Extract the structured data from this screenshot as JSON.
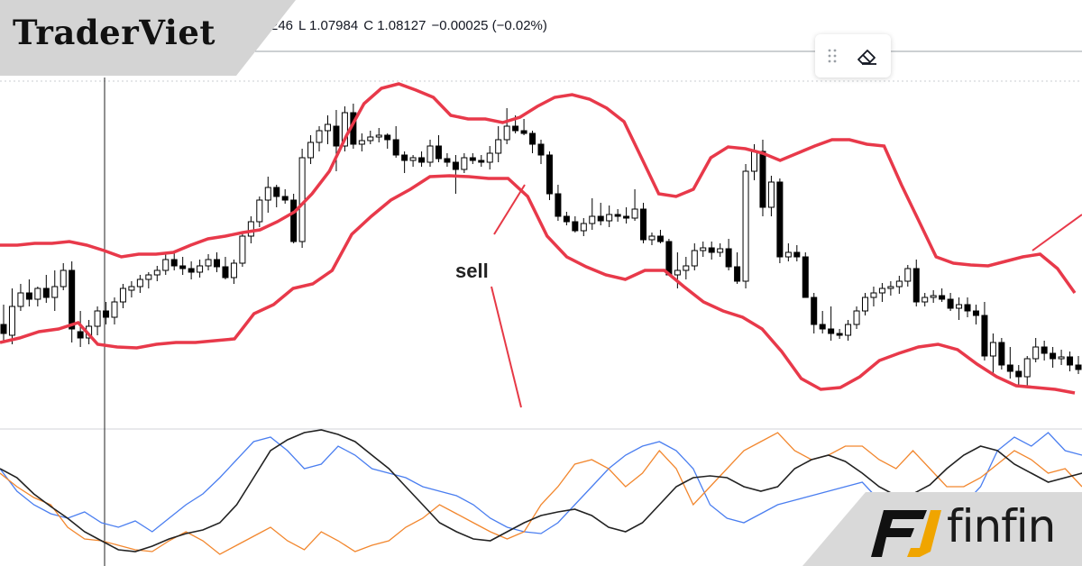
{
  "header": {
    "ohlc": [
      {
        "key": "h",
        "text": "246"
      },
      {
        "key": "l",
        "text": "L 1.07984"
      },
      {
        "key": "c",
        "text": "C 1.08127"
      },
      {
        "key": "chg",
        "text": "−0.00025 (−0.02%)"
      }
    ]
  },
  "branding": {
    "left_logo": "TraderViet",
    "right_logo": "finfin"
  },
  "annotation": {
    "label": "sell",
    "color": "#e63946"
  },
  "colors": {
    "bollinger": "#e8394a",
    "candle": "#000000",
    "osc_black": "#222222",
    "osc_blue": "#4a7ef0",
    "osc_orange": "#f2872e",
    "separator": "#d0d3d9"
  },
  "icons": [
    "drag-handle-icon",
    "eraser-icon",
    "finfin-logo-icon"
  ],
  "chart_data": [
    {
      "type": "candlestick",
      "indicator": "bollinger_bands",
      "candles": [
        [
          360,
          338,
          380,
          370
        ],
        [
          372,
          320,
          382,
          340
        ],
        [
          340,
          315,
          345,
          325
        ],
        [
          325,
          310,
          340,
          332
        ],
        [
          332,
          318,
          340,
          320
        ],
        [
          320,
          305,
          336,
          330
        ],
        [
          330,
          300,
          345,
          318
        ],
        [
          318,
          292,
          322,
          300
        ],
        [
          300,
          290,
          380,
          365
        ],
        [
          368,
          345,
          385,
          375
        ],
        [
          375,
          355,
          382,
          362
        ],
        [
          362,
          340,
          372,
          345
        ],
        [
          345,
          335,
          360,
          352
        ],
        [
          352,
          330,
          360,
          335
        ],
        [
          335,
          315,
          342,
          320
        ],
        [
          322,
          312,
          330,
          318
        ],
        [
          318,
          305,
          325,
          310
        ],
        [
          310,
          302,
          320,
          305
        ],
        [
          305,
          295,
          312,
          300
        ],
        [
          300,
          282,
          305,
          288
        ],
        [
          288,
          278,
          300,
          295
        ],
        [
          295,
          285,
          305,
          298
        ],
        [
          298,
          290,
          310,
          302
        ],
        [
          302,
          288,
          308,
          295
        ],
        [
          295,
          282,
          300,
          288
        ],
        [
          288,
          280,
          302,
          296
        ],
        [
          296,
          285,
          310,
          308
        ],
        [
          308,
          288,
          315,
          292
        ],
        [
          292,
          258,
          296,
          262
        ],
        [
          262,
          240,
          270,
          246
        ],
        [
          246,
          218,
          252,
          222
        ],
        [
          222,
          196,
          236,
          208
        ],
        [
          208,
          205,
          230,
          218
        ],
        [
          218,
          210,
          226,
          222
        ],
        [
          222,
          215,
          270,
          268
        ],
        [
          268,
          165,
          275,
          175
        ],
        [
          175,
          150,
          182,
          158
        ],
        [
          158,
          140,
          168,
          145
        ],
        [
          145,
          128,
          160,
          138
        ],
        [
          140,
          122,
          190,
          162
        ],
        [
          162,
          118,
          168,
          125
        ],
        [
          125,
          115,
          165,
          160
        ],
        [
          160,
          148,
          168,
          156
        ],
        [
          156,
          145,
          160,
          152
        ],
        [
          152,
          142,
          158,
          150
        ],
        [
          150,
          148,
          165,
          155
        ],
        [
          155,
          140,
          175,
          172
        ],
        [
          172,
          168,
          192,
          178
        ],
        [
          178,
          172,
          185,
          175
        ],
        [
          175,
          168,
          185,
          180
        ],
        [
          180,
          155,
          185,
          162
        ],
        [
          162,
          150,
          180,
          176
        ],
        [
          176,
          170,
          185,
          180
        ],
        [
          180,
          172,
          215,
          188
        ],
        [
          188,
          170,
          192,
          175
        ],
        [
          175,
          170,
          182,
          178
        ],
        [
          178,
          172,
          185,
          180
        ],
        [
          180,
          162,
          188,
          170
        ],
        [
          170,
          140,
          180,
          155
        ],
        [
          155,
          120,
          160,
          140
        ],
        [
          140,
          128,
          148,
          145
        ],
        [
          145,
          132,
          150,
          148
        ],
        [
          148,
          145,
          170,
          160
        ],
        [
          160,
          155,
          182,
          172
        ],
        [
          172,
          168,
          222,
          215
        ],
        [
          215,
          205,
          245,
          240
        ],
        [
          240,
          235,
          250,
          246
        ],
        [
          246,
          240,
          258,
          256
        ],
        [
          256,
          242,
          262,
          248
        ],
        [
          248,
          220,
          255,
          240
        ],
        [
          240,
          225,
          250,
          245
        ],
        [
          245,
          228,
          252,
          238
        ],
        [
          238,
          232,
          246,
          240
        ],
        [
          240,
          230,
          248,
          242
        ],
        [
          242,
          210,
          245,
          232
        ],
        [
          232,
          225,
          270,
          266
        ],
        [
          266,
          258,
          272,
          262
        ],
        [
          262,
          255,
          270,
          268
        ],
        [
          268,
          265,
          300,
          305
        ],
        [
          305,
          280,
          320,
          300
        ],
        [
          300,
          285,
          310,
          295
        ],
        [
          295,
          270,
          300,
          278
        ],
        [
          278,
          268,
          285,
          275
        ],
        [
          275,
          268,
          288,
          280
        ],
        [
          280,
          270,
          285,
          276
        ],
        [
          276,
          265,
          300,
          296
        ],
        [
          296,
          280,
          315,
          312
        ],
        [
          312,
          182,
          320,
          190
        ],
        [
          190,
          160,
          200,
          168
        ],
        [
          168,
          155,
          240,
          230
        ],
        [
          230,
          195,
          240,
          202
        ],
        [
          202,
          198,
          292,
          285
        ],
        [
          285,
          270,
          290,
          280
        ],
        [
          280,
          272,
          290,
          285
        ],
        [
          285,
          280,
          330,
          330
        ],
        [
          330,
          325,
          370,
          360
        ],
        [
          360,
          345,
          370,
          365
        ],
        [
          365,
          340,
          378,
          370
        ],
        [
          370,
          365,
          376,
          372
        ],
        [
          372,
          355,
          378,
          360
        ],
        [
          360,
          340,
          365,
          345
        ],
        [
          345,
          325,
          350,
          330
        ],
        [
          330,
          318,
          340,
          325
        ],
        [
          325,
          314,
          335,
          320
        ],
        [
          320,
          312,
          328,
          318
        ],
        [
          318,
          306,
          326,
          312
        ],
        [
          312,
          294,
          318,
          298
        ],
        [
          298,
          288,
          340,
          335
        ],
        [
          335,
          325,
          340,
          330
        ],
        [
          330,
          322,
          336,
          328
        ],
        [
          328,
          320,
          335,
          332
        ],
        [
          332,
          325,
          345,
          342
        ],
        [
          342,
          330,
          355,
          338
        ],
        [
          338,
          330,
          352,
          345
        ],
        [
          345,
          338,
          360,
          350
        ],
        [
          350,
          335,
          400,
          395
        ],
        [
          395,
          370,
          415,
          380
        ],
        [
          380,
          375,
          410,
          405
        ],
        [
          405,
          385,
          420,
          412
        ],
        [
          412,
          405,
          428,
          418
        ],
        [
          418,
          395,
          430,
          398
        ],
        [
          398,
          375,
          402,
          385
        ],
        [
          385,
          378,
          400,
          392
        ],
        [
          392,
          385,
          408,
          398
        ],
        [
          398,
          388,
          405,
          396
        ],
        [
          396,
          390,
          412,
          405
        ],
        [
          405,
          395,
          415,
          410
        ]
      ],
      "upper_band": [
        272,
        272,
        270,
        270,
        268,
        272,
        278,
        285,
        282,
        282,
        280,
        272,
        265,
        262,
        258,
        255,
        246,
        235,
        215,
        190,
        150,
        115,
        98,
        93,
        100,
        108,
        128,
        132,
        132,
        136,
        130,
        118,
        108,
        105,
        110,
        120,
        135,
        175,
        215,
        218,
        210,
        175,
        163,
        165,
        170,
        178,
        170,
        162,
        155,
        155,
        160,
        162,
        205,
        245,
        285,
        292,
        294,
        295,
        290,
        285,
        282,
        298,
        325
      ],
      "lower_band": [
        380,
        375,
        368,
        365,
        358,
        382,
        385,
        386,
        382,
        380,
        380,
        378,
        376,
        348,
        338,
        320,
        315,
        300,
        260,
        240,
        222,
        210,
        196,
        195,
        196,
        198,
        198,
        218,
        262,
        285,
        296,
        305,
        310,
        300,
        300,
        318,
        335,
        345,
        352,
        365,
        390,
        420,
        432,
        430,
        418,
        400,
        392,
        385,
        382,
        388,
        404,
        418,
        428,
        430,
        432,
        436
      ]
    }
  ]
}
